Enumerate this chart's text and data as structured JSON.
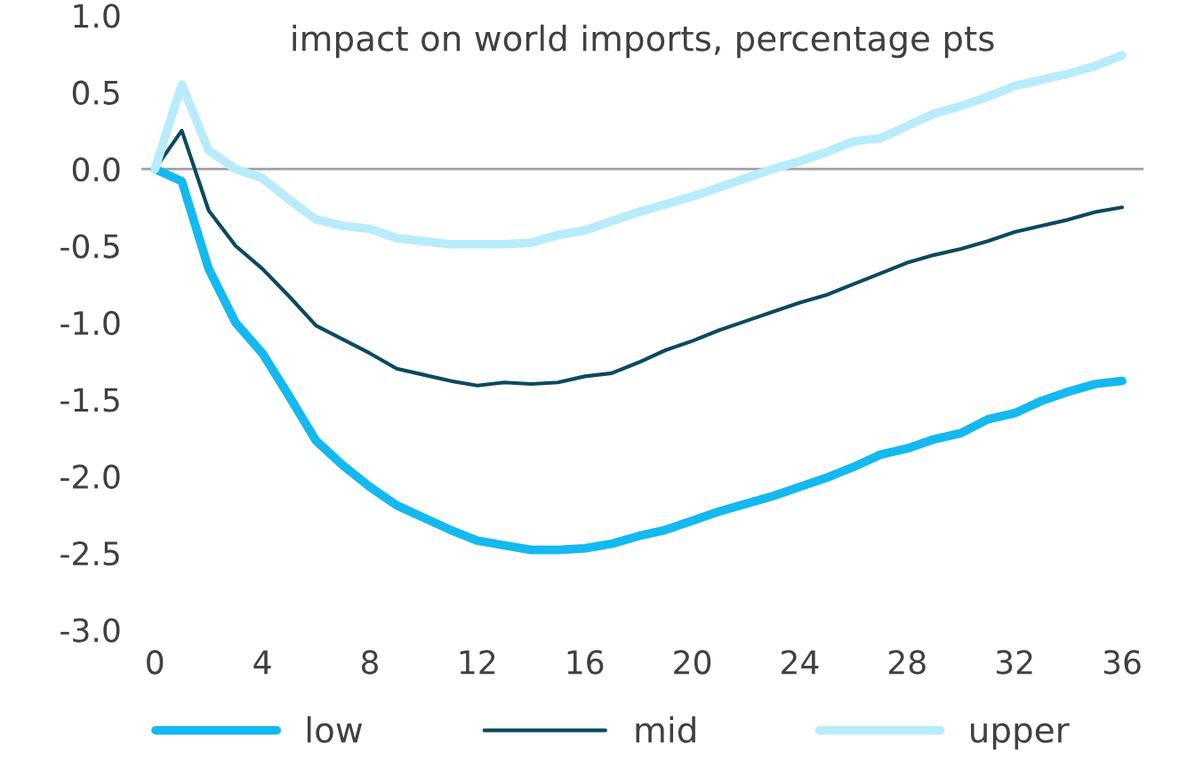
{
  "chart_data": {
    "type": "line",
    "title": "impact on world imports, percentage pts",
    "x": [
      0,
      1,
      2,
      3,
      4,
      5,
      6,
      7,
      8,
      9,
      10,
      11,
      12,
      13,
      14,
      15,
      16,
      17,
      18,
      19,
      20,
      21,
      22,
      23,
      24,
      25,
      26,
      27,
      28,
      29,
      30,
      31,
      32,
      33,
      34,
      35,
      36
    ],
    "series": [
      {
        "name": "low",
        "color": "#14b9f0",
        "values": [
          0,
          -0.08,
          -0.65,
          -1.0,
          -1.2,
          -1.48,
          -1.77,
          -1.93,
          -2.07,
          -2.19,
          -2.27,
          -2.35,
          -2.42,
          -2.45,
          -2.48,
          -2.48,
          -2.47,
          -2.44,
          -2.39,
          -2.35,
          -2.29,
          -2.23,
          -2.18,
          -2.13,
          -2.07,
          -2.01,
          -1.94,
          -1.86,
          -1.82,
          -1.76,
          -1.72,
          -1.63,
          -1.59,
          -1.51,
          -1.45,
          -1.4,
          -1.38
        ]
      },
      {
        "name": "mid",
        "color": "#0b4a5e",
        "values": [
          0,
          0.25,
          -0.27,
          -0.5,
          -0.65,
          -0.83,
          -1.02,
          -1.11,
          -1.2,
          -1.3,
          -1.34,
          -1.38,
          -1.41,
          -1.39,
          -1.4,
          -1.39,
          -1.35,
          -1.33,
          -1.26,
          -1.18,
          -1.12,
          -1.05,
          -0.99,
          -0.93,
          -0.87,
          -0.82,
          -0.75,
          -0.68,
          -0.61,
          -0.56,
          -0.52,
          -0.47,
          -0.41,
          -0.37,
          -0.33,
          -0.28,
          -0.25
        ]
      },
      {
        "name": "upper",
        "color": "#b9ecfb",
        "values": [
          0,
          0.55,
          0.12,
          0.0,
          -0.06,
          -0.2,
          -0.33,
          -0.37,
          -0.39,
          -0.45,
          -0.47,
          -0.49,
          -0.49,
          -0.49,
          -0.48,
          -0.43,
          -0.4,
          -0.34,
          -0.28,
          -0.23,
          -0.18,
          -0.12,
          -0.06,
          0.0,
          0.05,
          0.11,
          0.18,
          0.2,
          0.28,
          0.36,
          0.41,
          0.47,
          0.54,
          0.58,
          0.62,
          0.67,
          0.74
        ]
      }
    ],
    "xlim": [
      -0.5,
      36.8
    ],
    "xticks": [
      0,
      4,
      8,
      12,
      16,
      20,
      24,
      28,
      32,
      36
    ],
    "ylim": [
      -3.0,
      1.0
    ],
    "yticks": [
      {
        "value": 1.0,
        "label": "1.0"
      },
      {
        "value": 0.5,
        "label": "0.5"
      },
      {
        "value": 0.0,
        "label": "0.0"
      },
      {
        "value": -0.5,
        "label": "-0.5"
      },
      {
        "value": -1.0,
        "label": "-1.0"
      },
      {
        "value": -1.5,
        "label": "-1.5"
      },
      {
        "value": -2.0,
        "label": "-2.0"
      },
      {
        "value": -2.5,
        "label": "-2.5"
      },
      {
        "value": -3.0,
        "label": "-3.0"
      }
    ],
    "ref_lines": [
      {
        "axis": "y",
        "value": 0,
        "color": "#a0a0a0"
      }
    ],
    "grid": false,
    "legend": "bottom",
    "line_style": "solid",
    "marker": "none"
  }
}
